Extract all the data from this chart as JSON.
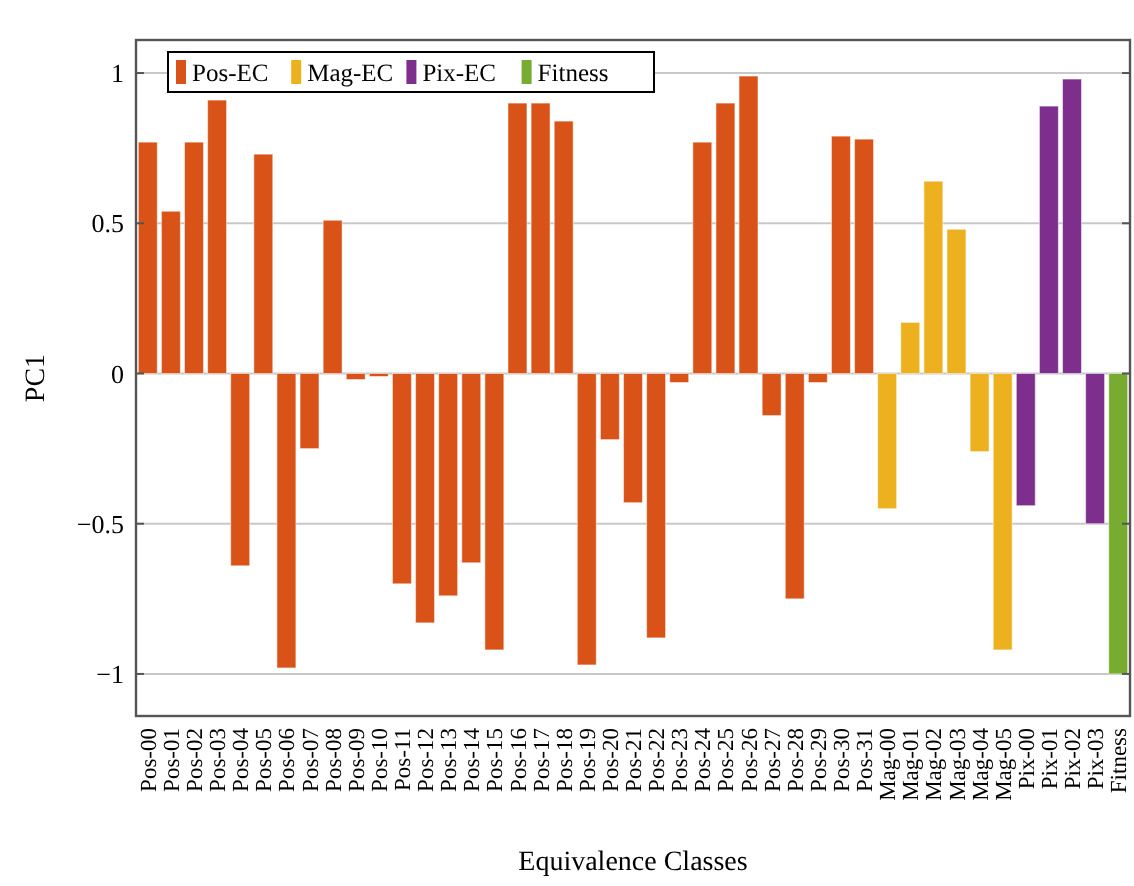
{
  "chart_data": {
    "type": "bar",
    "xlabel": "Equivalence Classes",
    "ylabel": "PC1",
    "categories": [
      "Pos-00",
      "Pos-01",
      "Pos-02",
      "Pos-03",
      "Pos-04",
      "Pos-05",
      "Pos-06",
      "Pos-07",
      "Pos-08",
      "Pos-09",
      "Pos-10",
      "Pos-11",
      "Pos-12",
      "Pos-13",
      "Pos-14",
      "Pos-15",
      "Pos-16",
      "Pos-17",
      "Pos-18",
      "Pos-19",
      "Pos-20",
      "Pos-21",
      "Pos-22",
      "Pos-23",
      "Pos-24",
      "Pos-25",
      "Pos-26",
      "Pos-27",
      "Pos-28",
      "Pos-29",
      "Pos-30",
      "Pos-31",
      "Mag-00",
      "Mag-01",
      "Mag-02",
      "Mag-03",
      "Mag-04",
      "Mag-05",
      "Pix-00",
      "Pix-01",
      "Pix-02",
      "Pix-03",
      "Fitness"
    ],
    "series": [
      {
        "name": "Pos-EC",
        "color": "#d95319",
        "values": [
          0.77,
          0.54,
          0.77,
          0.91,
          -0.64,
          0.73,
          -0.98,
          -0.25,
          0.51,
          -0.02,
          -0.01,
          -0.7,
          -0.83,
          -0.74,
          -0.63,
          -0.92,
          0.9,
          0.9,
          0.84,
          -0.97,
          -0.22,
          -0.43,
          -0.88,
          -0.03,
          0.77,
          0.9,
          0.99,
          -0.14,
          -0.75,
          -0.03,
          0.79,
          0.78,
          null,
          null,
          null,
          null,
          null,
          null,
          null,
          null,
          null,
          null,
          null
        ]
      },
      {
        "name": "Mag-EC",
        "color": "#edb120",
        "values": [
          null,
          null,
          null,
          null,
          null,
          null,
          null,
          null,
          null,
          null,
          null,
          null,
          null,
          null,
          null,
          null,
          null,
          null,
          null,
          null,
          null,
          null,
          null,
          null,
          null,
          null,
          null,
          null,
          null,
          null,
          null,
          null,
          -0.45,
          0.17,
          0.64,
          0.48,
          -0.26,
          -0.92,
          null,
          null,
          null,
          null,
          null
        ]
      },
      {
        "name": "Pix-EC",
        "color": "#7e2f8e",
        "values": [
          null,
          null,
          null,
          null,
          null,
          null,
          null,
          null,
          null,
          null,
          null,
          null,
          null,
          null,
          null,
          null,
          null,
          null,
          null,
          null,
          null,
          null,
          null,
          null,
          null,
          null,
          null,
          null,
          null,
          null,
          null,
          null,
          null,
          null,
          null,
          null,
          null,
          null,
          -0.44,
          0.89,
          0.98,
          -0.5,
          null
        ]
      },
      {
        "name": "Fitness",
        "color": "#77ac30",
        "values": [
          null,
          null,
          null,
          null,
          null,
          null,
          null,
          null,
          null,
          null,
          null,
          null,
          null,
          null,
          null,
          null,
          null,
          null,
          null,
          null,
          null,
          null,
          null,
          null,
          null,
          null,
          null,
          null,
          null,
          null,
          null,
          null,
          null,
          null,
          null,
          null,
          null,
          null,
          null,
          null,
          null,
          null,
          -1.0
        ]
      }
    ],
    "ylim": [
      -1.14,
      1.11
    ],
    "yticks": [
      {
        "value": -1,
        "label": "−1"
      },
      {
        "value": -0.5,
        "label": "−0.5"
      },
      0,
      0.5,
      1
    ],
    "grid": "y",
    "legend": "top left"
  }
}
